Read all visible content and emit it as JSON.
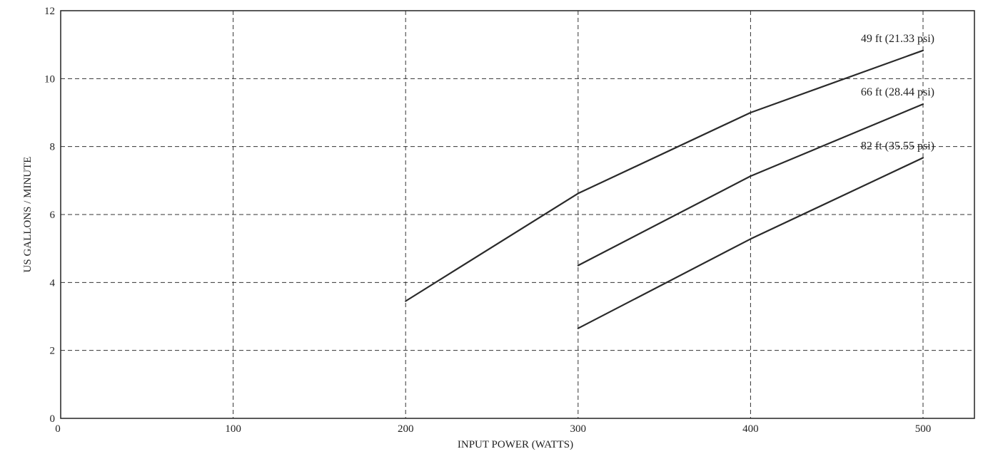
{
  "chart_data": {
    "type": "line",
    "title": "",
    "xlabel": "INPUT POWER (WATTS)",
    "ylabel": "US GALLONS / MINUTE",
    "xlim": [
      0,
      530
    ],
    "ylim": [
      0,
      12
    ],
    "x_ticks": [
      0,
      100,
      200,
      300,
      400,
      500
    ],
    "y_ticks": [
      0,
      2,
      4,
      6,
      8,
      10,
      12
    ],
    "grid": true,
    "series": [
      {
        "name": "49 ft (21.33 psi)",
        "x": [
          200,
          300,
          400,
          500
        ],
        "y": [
          3.45,
          6.62,
          9.0,
          10.83
        ]
      },
      {
        "name": "66 ft (28.44 psi)",
        "x": [
          300,
          400,
          500
        ],
        "y": [
          4.5,
          7.13,
          9.25
        ]
      },
      {
        "name": "82 ft (35.55 psi)",
        "x": [
          300,
          400,
          500
        ],
        "y": [
          2.65,
          5.28,
          7.67
        ]
      }
    ]
  }
}
